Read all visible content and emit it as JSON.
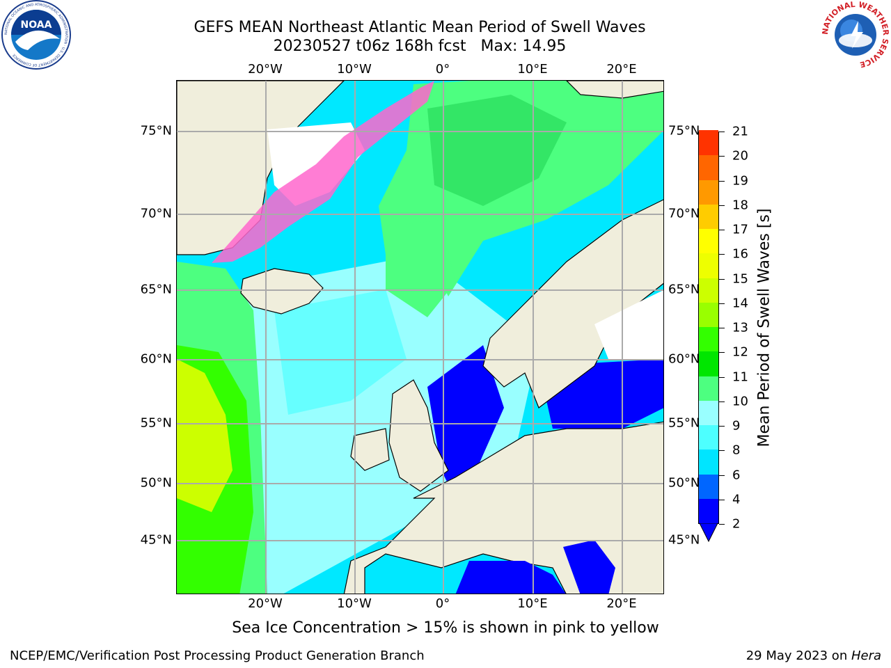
{
  "title_line1": "GEFS MEAN Northeast Atlantic Mean Period of Swell Waves",
  "title_line2": "20230527 t06z 168h fcst   Max: 14.95",
  "lon_labels": [
    "20°W",
    "10°W",
    "0°",
    "10°E",
    "20°E"
  ],
  "lat_labels": [
    "75°N",
    "70°N",
    "65°N",
    "60°N",
    "55°N",
    "50°N",
    "45°N"
  ],
  "colorbar": {
    "label": "Mean Period of Swell Waves [s]",
    "ticks": [
      "2",
      "4",
      "6",
      "8",
      "9",
      "10",
      "11",
      "12",
      "13",
      "14",
      "15",
      "16",
      "17",
      "18",
      "19",
      "20",
      "21"
    ],
    "colors": [
      "#0000ff",
      "#0066ff",
      "#00e5ff",
      "#4dffff",
      "#99ffff",
      "#4dff80",
      "#00e600",
      "#33ff00",
      "#99ff00",
      "#ccff00",
      "#eeff00",
      "#ffff00",
      "#ffcc00",
      "#ff9900",
      "#ff6600",
      "#ff3300",
      "#ff0000"
    ]
  },
  "footnote": "Sea Ice Concentration > 15% is shown in pink to yellow",
  "footer_left": "NCEP/EMC/Verification Post Processing Product Generation Branch",
  "footer_right_prefix": "29 May 2023 on ",
  "footer_right_host": "Hera",
  "logos": {
    "noaa": {
      "text": "NOAA",
      "ring": "NATIONAL OCEANIC AND ATMOSPHERIC ADMINISTRATION · U.S. DEPARTMENT OF COMMERCE"
    },
    "nws": {
      "ring": "NATIONAL WEATHER SERVICE"
    }
  }
}
